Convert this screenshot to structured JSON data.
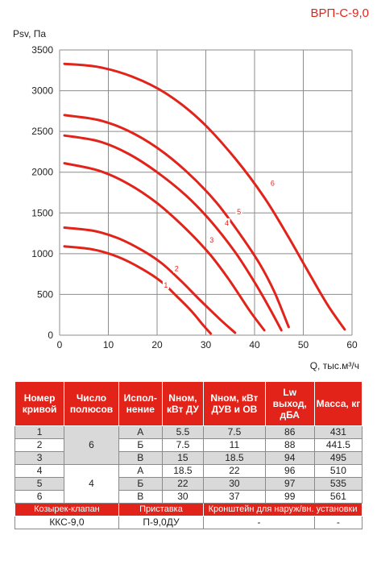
{
  "chart_data": {
    "type": "line",
    "title": "ВРП-С-9,0",
    "ylabel": "Psv, Па",
    "xlabel": "Q, тыс.м³/ч",
    "xlim": [
      0,
      60
    ],
    "ylim": [
      0,
      3500
    ],
    "x_ticks": [
      "0",
      "10",
      "20",
      "30",
      "40",
      "50",
      "60"
    ],
    "y_ticks": [
      "0",
      "500",
      "1000",
      "1500",
      "2000",
      "2500",
      "3000",
      "3500"
    ],
    "grid": true,
    "series": [
      {
        "name": "1",
        "label_at": [
          21.8,
          620
        ],
        "points": [
          [
            1.0,
            1090
          ],
          [
            7,
            1050
          ],
          [
            12,
            960
          ],
          [
            17,
            810
          ],
          [
            21,
            650
          ],
          [
            24,
            480
          ],
          [
            27,
            300
          ],
          [
            29.5,
            120
          ],
          [
            31.0,
            20
          ]
        ]
      },
      {
        "name": "2",
        "label_at": [
          24.0,
          820
        ],
        "points": [
          [
            1.0,
            1320
          ],
          [
            7,
            1280
          ],
          [
            12,
            1190
          ],
          [
            17,
            1040
          ],
          [
            21,
            880
          ],
          [
            25,
            660
          ],
          [
            29,
            420
          ],
          [
            33,
            190
          ],
          [
            36.0,
            30
          ]
        ]
      },
      {
        "name": "3",
        "label_at": [
          31.2,
          1170
        ],
        "points": [
          [
            1.0,
            2110
          ],
          [
            8,
            2020
          ],
          [
            14,
            1860
          ],
          [
            20,
            1620
          ],
          [
            26,
            1300
          ],
          [
            31,
            980
          ],
          [
            35,
            660
          ],
          [
            39,
            300
          ],
          [
            42.0,
            60
          ]
        ]
      },
      {
        "name": "4",
        "label_at": [
          34.3,
          1380
        ],
        "points": [
          [
            1.0,
            2450
          ],
          [
            8,
            2380
          ],
          [
            14,
            2230
          ],
          [
            20,
            2000
          ],
          [
            26,
            1710
          ],
          [
            31,
            1400
          ],
          [
            36,
            1020
          ],
          [
            40,
            650
          ],
          [
            43,
            340
          ],
          [
            45.5,
            60
          ]
        ]
      },
      {
        "name": "5",
        "label_at": [
          36.8,
          1520
        ],
        "points": [
          [
            1.0,
            2700
          ],
          [
            8,
            2640
          ],
          [
            14,
            2510
          ],
          [
            20,
            2300
          ],
          [
            26,
            2010
          ],
          [
            32,
            1640
          ],
          [
            37,
            1240
          ],
          [
            41,
            880
          ],
          [
            44,
            540
          ],
          [
            47.0,
            100
          ]
        ]
      },
      {
        "name": "6",
        "label_at": [
          43.7,
          1870
        ],
        "points": [
          [
            1.0,
            3330
          ],
          [
            8,
            3290
          ],
          [
            15,
            3170
          ],
          [
            22,
            2960
          ],
          [
            29,
            2630
          ],
          [
            36,
            2170
          ],
          [
            42,
            1690
          ],
          [
            47,
            1200
          ],
          [
            51,
            780
          ],
          [
            55,
            370
          ],
          [
            58.5,
            70
          ]
        ]
      }
    ]
  },
  "table": {
    "headers": [
      "Номер кривой",
      "Число полюсов",
      "Испол-нение",
      "Nном, кВт ДУ",
      "Nном, кВт ДУВ и ОВ",
      "Lw выход, дБА",
      "Масса, кг"
    ],
    "poles": [
      "6",
      "4"
    ],
    "rows": [
      [
        "1",
        "А",
        "5.5",
        "7.5",
        "86",
        "431"
      ],
      [
        "2",
        "Б",
        "7.5",
        "11",
        "88",
        "441.5"
      ],
      [
        "3",
        "В",
        "15",
        "18.5",
        "94",
        "495"
      ],
      [
        "4",
        "А",
        "18.5",
        "22",
        "96",
        "510"
      ],
      [
        "5",
        "Б",
        "22",
        "30",
        "97",
        "535"
      ],
      [
        "6",
        "В",
        "30",
        "37",
        "99",
        "561"
      ]
    ],
    "accessory_headers": [
      "Козырек-клапан",
      "Приставка",
      "Кронштейн для наруж/вн. установки"
    ],
    "accessory_values": [
      "ККС-9,0",
      "П-9,0ДУ",
      "-",
      "-"
    ]
  },
  "colors": {
    "curve": "#e2231a",
    "header_bg": "#e2231a",
    "shade": "#d9d9d9",
    "grid": "#8c8c8c"
  }
}
